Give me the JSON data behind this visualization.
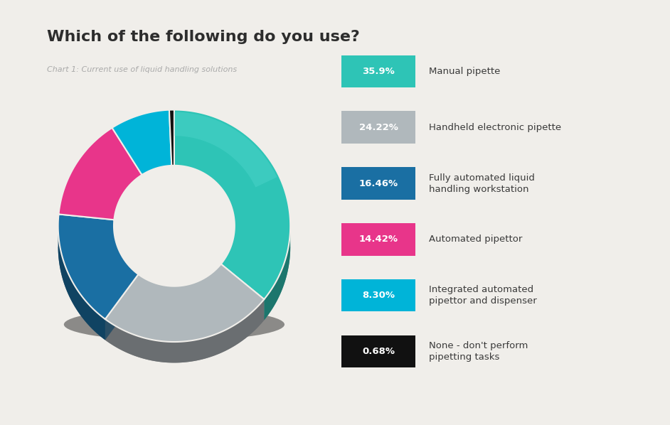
{
  "title": "Which of the following do you use?",
  "subtitle": "Chart 1: Current use of liquid handling solutions",
  "slices": [
    35.9,
    24.22,
    16.46,
    14.42,
    8.3,
    0.68
  ],
  "labels": [
    "35.9%",
    "24.22%",
    "16.46%",
    "14.42%",
    "8.30%",
    "0.68%"
  ],
  "legend_labels": [
    "Manual pipette",
    "Handheld electronic pipette",
    "Fully automated liquid\nhandling workstation",
    "Automated pipettor",
    "Integrated automated\npipettor and dispenser",
    "None - don't perform\npipetting tasks"
  ],
  "colors": [
    "#2ec4b6",
    "#b0b8bc",
    "#1a6fa3",
    "#e8358a",
    "#00b4d8",
    "#111111"
  ],
  "bg_color": "#f0eeea",
  "title_color": "#2d2d2d",
  "subtitle_color": "#aaaaaa"
}
